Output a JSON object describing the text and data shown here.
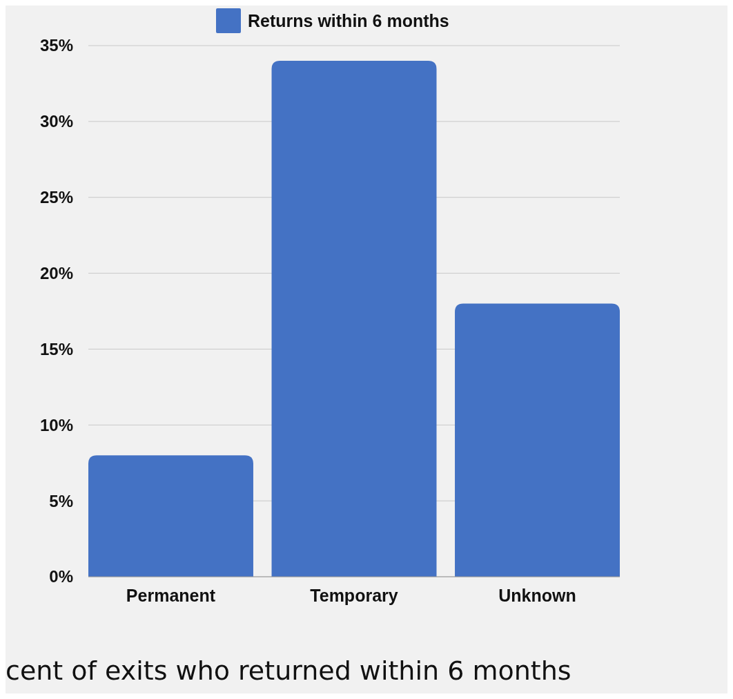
{
  "chart_data": {
    "type": "bar",
    "categories": [
      "Permanent",
      "Temporary",
      "Unknown"
    ],
    "series": [
      {
        "name": "Returns within 6 months",
        "color": "#4472c4",
        "values": [
          8,
          34,
          18
        ]
      }
    ],
    "ylim": [
      0,
      35
    ],
    "yticks": [
      {
        "value": 0,
        "label": "0%"
      },
      {
        "value": 5,
        "label": "5%"
      },
      {
        "value": 10,
        "label": "10%"
      },
      {
        "value": 15,
        "label": "15%"
      },
      {
        "value": 20,
        "label": "20%"
      },
      {
        "value": 25,
        "label": "25%"
      },
      {
        "value": 30,
        "label": "30%"
      },
      {
        "value": 35,
        "label": "35%"
      }
    ],
    "grid": "y",
    "legend": "top",
    "annotations": [
      "cent of exits who returned within 6 months"
    ]
  }
}
